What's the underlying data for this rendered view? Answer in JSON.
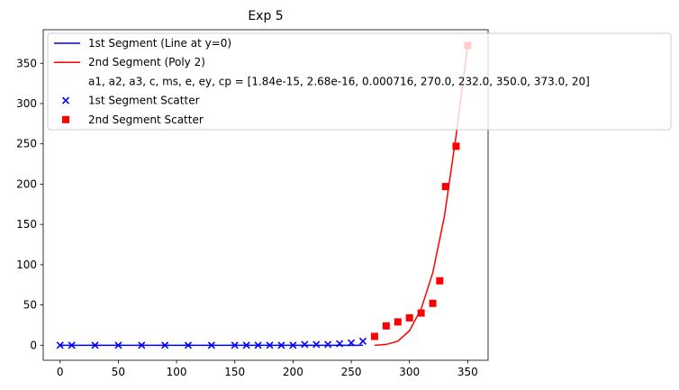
{
  "chart_data": {
    "type": "scatter",
    "title": "Exp 5",
    "xlabel": "",
    "ylabel": "",
    "xlim": [
      -14.5,
      367.5
    ],
    "ylim": [
      -18.65,
      391.65
    ],
    "xticks": [
      0,
      50,
      100,
      150,
      200,
      250,
      300,
      350
    ],
    "yticks": [
      0,
      50,
      100,
      150,
      200,
      250,
      300,
      350
    ],
    "grid": false,
    "legend_position": "top-left",
    "legend": [
      {
        "label": "1st Segment (Line at y=0)",
        "kind": "line",
        "color": "#0000ff"
      },
      {
        "label": "2nd Segment (Poly 2)",
        "kind": "line",
        "color": "#ff0000"
      },
      {
        "label": "a1, a2, a3, c, ms, e, ey, cp = [1.84e-15, 2.68e-16, 0.000716, 270.0, 232.0, 350.0, 373.0, 20]",
        "kind": "none",
        "color": ""
      },
      {
        "label": "1st Segment Scatter",
        "kind": "x-marker",
        "color": "#0000ff"
      },
      {
        "label": "2nd Segment Scatter",
        "kind": "square-marker",
        "color": "#ff0000"
      }
    ],
    "series": [
      {
        "name": "1st Segment (Line at y=0)",
        "type": "line",
        "color": "#0000ff",
        "x": [
          0,
          260
        ],
        "y": [
          0,
          0
        ]
      },
      {
        "name": "2nd Segment (Poly 2)",
        "type": "line",
        "color": "#ff0000",
        "x": [
          270,
          280,
          290,
          300,
          310,
          320,
          330,
          340,
          350
        ],
        "y": [
          0,
          1,
          5,
          18,
          45,
          90,
          160,
          260,
          373
        ]
      },
      {
        "name": "1st Segment Scatter",
        "type": "scatter",
        "marker": "x",
        "color": "#0000ff",
        "x": [
          0,
          10,
          30,
          50,
          70,
          90,
          110,
          130,
          150,
          160,
          170,
          180,
          190,
          200,
          210,
          220,
          230,
          240,
          250,
          260
        ],
        "y": [
          0,
          0,
          0,
          0,
          0,
          0,
          0,
          0,
          0,
          0,
          0,
          0,
          0,
          0,
          1,
          1,
          1,
          2,
          3,
          5
        ]
      },
      {
        "name": "2nd Segment Scatter",
        "type": "scatter",
        "marker": "square",
        "color": "#ff0000",
        "x": [
          270,
          280,
          290,
          300,
          310,
          320,
          326,
          331,
          340,
          350
        ],
        "y": [
          11,
          24,
          29,
          34,
          40,
          52,
          80,
          197,
          247,
          372
        ]
      }
    ]
  }
}
